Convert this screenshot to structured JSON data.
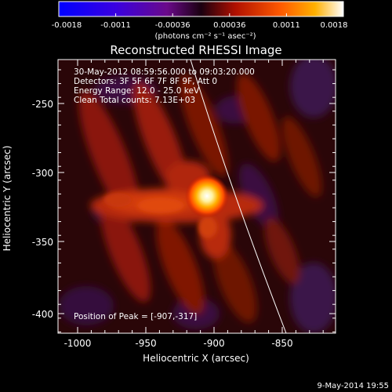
{
  "colorbar": {
    "ticks": [
      "-0.0018",
      "-0.0011",
      "-0.00036",
      "0.00036",
      "0.0011",
      "0.0018"
    ],
    "units_label": "(photons cm⁻² s⁻¹ asec⁻²)"
  },
  "plot": {
    "title": "Reconstructed RHESSI Image",
    "xlabel": "Heliocentric X (arcsec)",
    "ylabel": "Heliocentric Y (arcsec)",
    "x_ticks": [
      "-1000",
      "-950",
      "-900",
      "-850"
    ],
    "y_ticks": [
      "-250",
      "-300",
      "-350",
      "-400"
    ],
    "info_lines": [
      "30-May-2012 08:59:56.000 to 09:03:20.000",
      "Detectors: 3F 5F 6F 7F 8F 9F, Att 0",
      "Energy Range: 12.0 - 25.0 keV",
      "Clean     Total counts: 7.13E+03"
    ],
    "peak_label": "Position of Peak = [-907,-317]"
  },
  "footer": {
    "date": "9-May-2014 19:55"
  }
}
